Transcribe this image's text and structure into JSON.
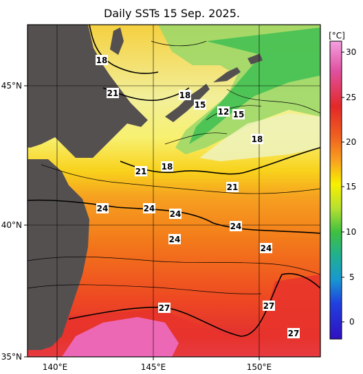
{
  "title": "Daily SSTs 15 Sep. 2025.",
  "map": {
    "lat_labels": [
      "45°N",
      "40°N",
      "35°N"
    ],
    "lon_labels": [
      "140°E",
      "145°E",
      "150°E"
    ]
  },
  "colorbar": {
    "unit": "[°C]",
    "ticks": [
      "30",
      "25",
      "20",
      "15",
      "10",
      "5",
      "0"
    ]
  },
  "contour_labels": [
    "18",
    "21",
    "18",
    "15",
    "12",
    "15",
    "18",
    "21",
    "18",
    "21",
    "24",
    "24",
    "24",
    "24",
    "24",
    "24",
    "27",
    "27",
    "27"
  ]
}
